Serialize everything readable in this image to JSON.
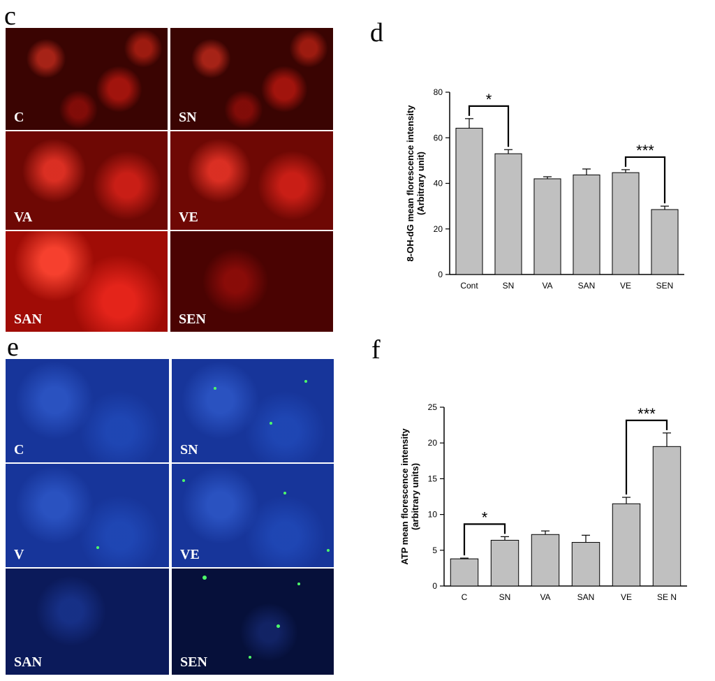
{
  "panels": {
    "c": "c",
    "d": "d",
    "e": "e",
    "f": "f"
  },
  "colors": {
    "bar_fill": "#c0c0c0",
    "bar_stroke": "#000000",
    "red_stain": "#b00c06",
    "blue_stain": "#17359a",
    "green_spot": "#4dff6a"
  },
  "micrographs_c": [
    "C",
    "SN",
    "VA",
    "VE",
    "SAN",
    "SEN"
  ],
  "micrographs_e": [
    "C",
    "SN",
    "V",
    "VE",
    "SAN",
    "SEN"
  ],
  "chart_data": [
    {
      "type": "bar",
      "categories": [
        "Cont",
        "SN",
        "VA",
        "SAN",
        "VE",
        "SEN"
      ],
      "values": [
        64.2,
        53,
        42,
        43.7,
        44.7,
        28.5
      ],
      "errors": [
        4.2,
        1.8,
        0.9,
        2.6,
        1.3,
        1.5
      ],
      "ylabel": "8-OH-dG  mean florescence intensity",
      "ylabel2": "(Arbitrary unit)",
      "ylim": [
        0,
        80
      ],
      "yticks": [
        0,
        20,
        40,
        60,
        80
      ],
      "significance": [
        {
          "from": 0,
          "to": 1,
          "label": "*"
        },
        {
          "from": 4,
          "to": 5,
          "label": "***"
        }
      ]
    },
    {
      "type": "bar",
      "categories": [
        "C",
        "SN",
        "VA",
        "SAN",
        "VE",
        "SE N"
      ],
      "values": [
        3.8,
        6.4,
        7.2,
        6.1,
        11.5,
        19.5
      ],
      "errors": [
        0.1,
        0.5,
        0.5,
        1.0,
        0.9,
        1.9
      ],
      "ylabel": "ATP mean florescence intensity",
      "ylabel2": "(arbitrary units)",
      "ylim": [
        0,
        25
      ],
      "yticks": [
        0,
        5,
        10,
        15,
        20,
        25
      ],
      "significance": [
        {
          "from": 0,
          "to": 1,
          "label": "*"
        },
        {
          "from": 4,
          "to": 5,
          "label": "***"
        }
      ]
    }
  ]
}
